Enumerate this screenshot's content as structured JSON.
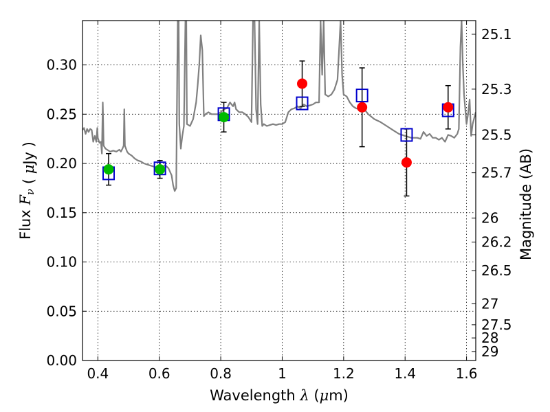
{
  "chart_data": {
    "type": "scatter",
    "title": "",
    "xlabel": "Wavelength  λ (μm)",
    "ylabel": "Flux  F_ν  ( μJy )",
    "ylabel_right": "Magnitude (AB)",
    "xlim": [
      0.35,
      1.63
    ],
    "ylim": [
      0.0,
      0.345
    ],
    "grid": true,
    "x_ticks": [
      0.4,
      0.6,
      0.8,
      1.0,
      1.2,
      1.4,
      1.6
    ],
    "x_tick_labels": [
      "0.4",
      "0.6",
      "0.8",
      "1",
      "1.2",
      "1.4",
      "1.6"
    ],
    "y_ticks": [
      0.0,
      0.05,
      0.1,
      0.15,
      0.2,
      0.25,
      0.3
    ],
    "y_tick_labels": [
      "0.00",
      "0.05",
      "0.10",
      "0.15",
      "0.20",
      "0.25",
      "0.30"
    ],
    "right_ticks": [
      {
        "mag": 25.1,
        "label": "25.1"
      },
      {
        "mag": 25.3,
        "label": "25.3"
      },
      {
        "mag": 25.5,
        "label": "25.5"
      },
      {
        "mag": 25.7,
        "label": "25.7"
      },
      {
        "mag": 26,
        "label": "26"
      },
      {
        "mag": 26.2,
        "label": "26.2"
      },
      {
        "mag": 26.5,
        "label": "26.5"
      },
      {
        "mag": 27,
        "label": "27"
      },
      {
        "mag": 27.5,
        "label": "27.5"
      },
      {
        "mag": 28,
        "label": "28"
      },
      {
        "mag": 29,
        "label": "29"
      }
    ],
    "model_spectrum": {
      "color": "#808080",
      "points": [
        [
          0.35,
          0.234
        ],
        [
          0.355,
          0.236
        ],
        [
          0.36,
          0.23
        ],
        [
          0.365,
          0.235
        ],
        [
          0.37,
          0.232
        ],
        [
          0.375,
          0.235
        ],
        [
          0.38,
          0.234
        ],
        [
          0.385,
          0.222
        ],
        [
          0.39,
          0.228
        ],
        [
          0.395,
          0.222
        ],
        [
          0.398,
          0.236
        ],
        [
          0.4,
          0.226
        ],
        [
          0.405,
          0.221
        ],
        [
          0.41,
          0.222
        ],
        [
          0.413,
          0.21
        ],
        [
          0.416,
          0.262
        ],
        [
          0.419,
          0.218
        ],
        [
          0.425,
          0.215
        ],
        [
          0.43,
          0.214
        ],
        [
          0.44,
          0.212
        ],
        [
          0.45,
          0.213
        ],
        [
          0.46,
          0.212
        ],
        [
          0.465,
          0.213
        ],
        [
          0.47,
          0.214
        ],
        [
          0.475,
          0.212
        ],
        [
          0.48,
          0.215
        ],
        [
          0.484,
          0.218
        ],
        [
          0.486,
          0.255
        ],
        [
          0.488,
          0.218
        ],
        [
          0.495,
          0.212
        ],
        [
          0.5,
          0.21
        ],
        [
          0.51,
          0.208
        ],
        [
          0.52,
          0.205
        ],
        [
          0.53,
          0.203
        ],
        [
          0.54,
          0.202
        ],
        [
          0.55,
          0.2
        ],
        [
          0.56,
          0.199
        ],
        [
          0.57,
          0.198
        ],
        [
          0.58,
          0.197
        ],
        [
          0.59,
          0.196
        ],
        [
          0.6,
          0.196
        ],
        [
          0.61,
          0.197
        ],
        [
          0.62,
          0.198
        ],
        [
          0.63,
          0.195
        ],
        [
          0.64,
          0.188
        ],
        [
          0.645,
          0.178
        ],
        [
          0.65,
          0.172
        ],
        [
          0.655,
          0.175
        ],
        [
          0.66,
          0.345
        ],
        [
          0.663,
          0.345
        ],
        [
          0.665,
          0.24
        ],
        [
          0.67,
          0.215
        ],
        [
          0.675,
          0.228
        ],
        [
          0.68,
          0.238
        ],
        [
          0.685,
          0.345
        ],
        [
          0.688,
          0.345
        ],
        [
          0.69,
          0.24
        ],
        [
          0.7,
          0.238
        ],
        [
          0.71,
          0.245
        ],
        [
          0.72,
          0.262
        ],
        [
          0.725,
          0.28
        ],
        [
          0.73,
          0.3
        ],
        [
          0.735,
          0.33
        ],
        [
          0.74,
          0.315
        ],
        [
          0.745,
          0.248
        ],
        [
          0.75,
          0.25
        ],
        [
          0.76,
          0.252
        ],
        [
          0.77,
          0.25
        ],
        [
          0.78,
          0.25
        ],
        [
          0.79,
          0.25
        ],
        [
          0.8,
          0.252
        ],
        [
          0.81,
          0.255
        ],
        [
          0.82,
          0.256
        ],
        [
          0.83,
          0.262
        ],
        [
          0.835,
          0.26
        ],
        [
          0.84,
          0.258
        ],
        [
          0.845,
          0.262
        ],
        [
          0.85,
          0.255
        ],
        [
          0.86,
          0.252
        ],
        [
          0.87,
          0.252
        ],
        [
          0.88,
          0.25
        ],
        [
          0.89,
          0.247
        ],
        [
          0.9,
          0.242
        ],
        [
          0.905,
          0.345
        ],
        [
          0.91,
          0.345
        ],
        [
          0.915,
          0.255
        ],
        [
          0.92,
          0.24
        ],
        [
          0.925,
          0.345
        ],
        [
          0.93,
          0.26
        ],
        [
          0.935,
          0.238
        ],
        [
          0.94,
          0.24
        ],
        [
          0.95,
          0.238
        ],
        [
          0.96,
          0.239
        ],
        [
          0.97,
          0.24
        ],
        [
          0.98,
          0.239
        ],
        [
          0.99,
          0.24
        ],
        [
          1.0,
          0.24
        ],
        [
          1.01,
          0.242
        ],
        [
          1.02,
          0.252
        ],
        [
          1.03,
          0.255
        ],
        [
          1.04,
          0.256
        ],
        [
          1.05,
          0.258
        ],
        [
          1.06,
          0.256
        ],
        [
          1.07,
          0.26
        ],
        [
          1.08,
          0.258
        ],
        [
          1.09,
          0.259
        ],
        [
          1.1,
          0.26
        ],
        [
          1.11,
          0.262
        ],
        [
          1.12,
          0.262
        ],
        [
          1.125,
          0.345
        ],
        [
          1.13,
          0.29
        ],
        [
          1.135,
          0.345
        ],
        [
          1.14,
          0.27
        ],
        [
          1.15,
          0.268
        ],
        [
          1.16,
          0.27
        ],
        [
          1.17,
          0.275
        ],
        [
          1.18,
          0.285
        ],
        [
          1.19,
          0.345
        ],
        [
          1.195,
          0.29
        ],
        [
          1.2,
          0.27
        ],
        [
          1.21,
          0.268
        ],
        [
          1.22,
          0.262
        ],
        [
          1.23,
          0.258
        ],
        [
          1.24,
          0.256
        ],
        [
          1.25,
          0.255
        ],
        [
          1.26,
          0.255
        ],
        [
          1.27,
          0.254
        ],
        [
          1.28,
          0.25
        ],
        [
          1.3,
          0.245
        ],
        [
          1.32,
          0.242
        ],
        [
          1.34,
          0.238
        ],
        [
          1.36,
          0.234
        ],
        [
          1.38,
          0.23
        ],
        [
          1.4,
          0.228
        ],
        [
          1.42,
          0.226
        ],
        [
          1.44,
          0.226
        ],
        [
          1.45,
          0.225
        ],
        [
          1.46,
          0.232
        ],
        [
          1.47,
          0.228
        ],
        [
          1.48,
          0.23
        ],
        [
          1.49,
          0.226
        ],
        [
          1.5,
          0.226
        ],
        [
          1.51,
          0.224
        ],
        [
          1.52,
          0.226
        ],
        [
          1.53,
          0.222
        ],
        [
          1.54,
          0.229
        ],
        [
          1.55,
          0.228
        ],
        [
          1.56,
          0.226
        ],
        [
          1.57,
          0.23
        ],
        [
          1.575,
          0.235
        ],
        [
          1.58,
          0.318
        ],
        [
          1.584,
          0.345
        ],
        [
          1.588,
          0.3
        ],
        [
          1.592,
          0.27
        ],
        [
          1.6,
          0.24
        ],
        [
          1.605,
          0.25
        ],
        [
          1.61,
          0.265
        ],
        [
          1.615,
          0.228
        ],
        [
          1.62,
          0.24
        ],
        [
          1.63,
          0.252
        ]
      ]
    },
    "series": [
      {
        "marker": "square-open",
        "color": "#0000cc",
        "points": [
          {
            "x": 0.435,
            "y": 0.19
          },
          {
            "x": 0.602,
            "y": 0.195
          },
          {
            "x": 0.81,
            "y": 0.25
          },
          {
            "x": 1.065,
            "y": 0.261
          },
          {
            "x": 1.26,
            "y": 0.269
          },
          {
            "x": 1.405,
            "y": 0.229
          },
          {
            "x": 1.54,
            "y": 0.254
          }
        ]
      },
      {
        "marker": "circle",
        "color": "#00bb00",
        "points": [
          {
            "x": 0.435,
            "y": 0.194,
            "err": 0.016
          },
          {
            "x": 0.602,
            "y": 0.194,
            "err": 0.009
          },
          {
            "x": 0.81,
            "y": 0.247,
            "err": 0.015
          }
        ]
      },
      {
        "marker": "circle",
        "color": "#ff0000",
        "points": [
          {
            "x": 1.065,
            "y": 0.281,
            "err": 0.023
          },
          {
            "x": 1.26,
            "y": 0.257,
            "err": 0.04
          },
          {
            "x": 1.405,
            "y": 0.201,
            "err": 0.034
          },
          {
            "x": 1.54,
            "y": 0.257,
            "err": 0.022
          }
        ]
      }
    ]
  }
}
